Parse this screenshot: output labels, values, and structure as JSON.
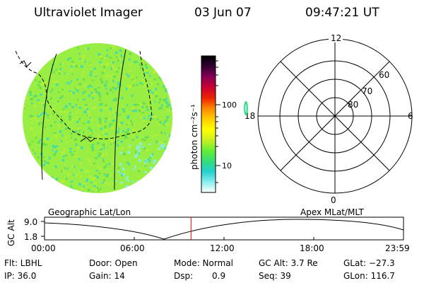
{
  "header": {
    "title": "Ultraviolet Imager",
    "date": "03 Jun 07",
    "time": "09:47:21 UT"
  },
  "colorbar": {
    "unit": "photon cm⁻²s⁻¹",
    "ticks": [
      "100",
      "10"
    ],
    "colors": [
      "#ffffff",
      "#88eeee",
      "#22d0d0",
      "#33dd77",
      "#66ee33",
      "#ccee22",
      "#ffff00",
      "#ffcc00",
      "#ff8800",
      "#ee2200",
      "#cc0033",
      "#880055",
      "#330033",
      "#000000"
    ]
  },
  "polar_plot": {
    "mlt_labels": {
      "top": "12",
      "left": "18",
      "right": "6",
      "bottom": "0"
    },
    "lat_labels": [
      "60",
      "70",
      "80"
    ]
  },
  "imager": {
    "base_color": "#99ee44",
    "speckle_colors": [
      "#66dd55",
      "#bbee33",
      "#44ddaa",
      "#88eeee",
      "#ccee22"
    ]
  },
  "timeline": {
    "left_title": "Geographic Lat/Lon",
    "right_title": "Apex  MLat/MLT",
    "axis_label": "GC Alt",
    "y_top": "9.0",
    "y_bottom": "1.8",
    "x_ticks": [
      "00:00",
      "06:00",
      "12:00",
      "18:00",
      "23:59"
    ],
    "marker_color": "#ee0000",
    "current_fraction": 0.408
  },
  "status": {
    "flt": "Flt: LBHL",
    "door": "Door: Open",
    "mode": "Mode: Normal",
    "gcalt": "GC Alt: 3.7 Re",
    "glat": "GLat: −27.3",
    "ip": "IP: 36.0",
    "gain": "Gain: 14",
    "dsp_label": "Dsp:",
    "dsp_value": "0.9",
    "seq": "Seq: 39",
    "glon": "GLon: 116.7"
  }
}
